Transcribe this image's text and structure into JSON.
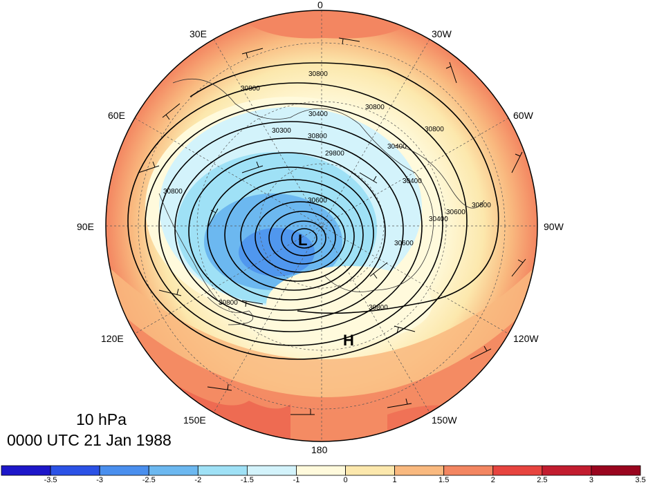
{
  "title": {
    "level": "10 hPa",
    "time": "0000 UTC 21 Jan 1988"
  },
  "longitude_labels": [
    {
      "id": "lon-0",
      "text": "0"
    },
    {
      "id": "lon-30w",
      "text": "30W"
    },
    {
      "id": "lon-60w",
      "text": "60W"
    },
    {
      "id": "lon-90w",
      "text": "90W"
    },
    {
      "id": "lon-120w",
      "text": "120W"
    },
    {
      "id": "lon-150w",
      "text": "150W"
    },
    {
      "id": "lon-180",
      "text": "180"
    },
    {
      "id": "lon-150e",
      "text": "150E"
    },
    {
      "id": "lon-120e",
      "text": "120E"
    },
    {
      "id": "lon-90e",
      "text": "90E"
    },
    {
      "id": "lon-60e",
      "text": "60E"
    },
    {
      "id": "lon-30e",
      "text": "30E"
    }
  ],
  "centers": {
    "low": "L",
    "high": "H"
  },
  "contour_labels": [
    "30800",
    "30800",
    "30800",
    "30400",
    "30800",
    "30300",
    "30800",
    "29800",
    "30400",
    "30400",
    "30600",
    "30600",
    "30400",
    "30800",
    "30800",
    "30600",
    "30800",
    "30800"
  ],
  "colorbar": {
    "colors": [
      "#1d17c9",
      "#2b52e6",
      "#4a8fee",
      "#6cb8f0",
      "#9fe1f6",
      "#d3f3fb",
      "#fffadc",
      "#fce8ad",
      "#f9b97f",
      "#f38661",
      "#e7443f",
      "#c21c2f",
      "#99051e"
    ],
    "ticks": [
      "-3.5",
      "-3",
      "-2.5",
      "-2",
      "-1.5",
      "-1",
      "0",
      "1",
      "1.5",
      "2",
      "2.5",
      "3",
      "3.5"
    ]
  }
}
